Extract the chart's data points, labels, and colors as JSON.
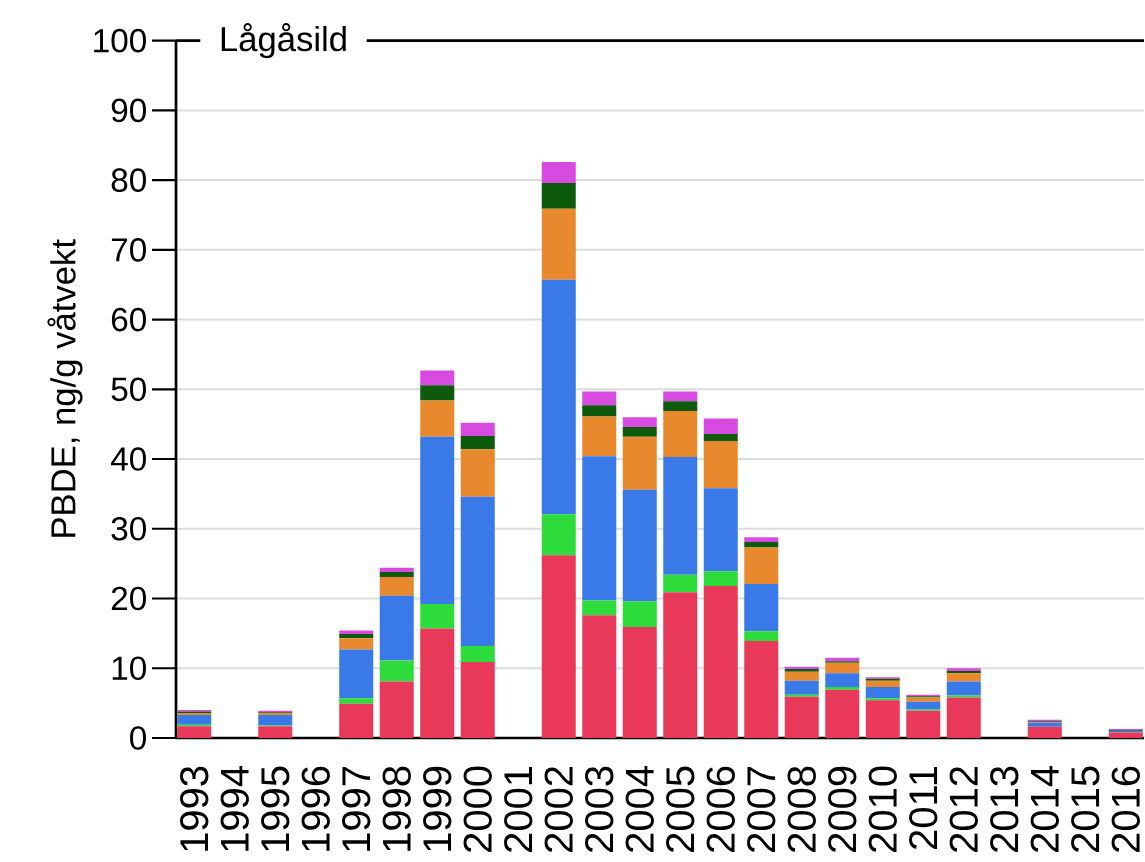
{
  "chart_data": {
    "type": "bar",
    "title": "Lågåsild",
    "ylabel": "PBDE, ng/g våtvekt",
    "stacked": true,
    "grid": "y",
    "categories": [
      "1993",
      "1994",
      "1995",
      "1996",
      "1997",
      "1998",
      "1999",
      "2000",
      "2001",
      "2002",
      "2003",
      "2004",
      "2005",
      "2006",
      "2007",
      "2008",
      "2009",
      "2010",
      "2011",
      "2012",
      "2013",
      "2014",
      "2015",
      "2016"
    ],
    "ylim": [
      0,
      100
    ],
    "yticks": [
      0,
      10,
      20,
      30,
      40,
      50,
      60,
      70,
      80,
      90,
      100
    ],
    "series": [
      {
        "color": "#e8395a",
        "values": [
          1.7,
          null,
          1.7,
          null,
          4.9,
          8.1,
          15.7,
          10.9,
          null,
          26.2,
          17.6,
          15.9,
          20.9,
          21.8,
          13.9,
          5.9,
          6.9,
          5.4,
          3.9,
          5.8,
          null,
          1.6,
          null,
          0.8
        ]
      },
      {
        "color": "#2ddc3a",
        "values": [
          0.2,
          null,
          0.1,
          null,
          0.8,
          3.0,
          3.5,
          2.3,
          null,
          5.9,
          2.1,
          3.7,
          2.5,
          2.1,
          1.4,
          0.3,
          0.4,
          0.3,
          0.2,
          0.3,
          null,
          null,
          null,
          null
        ]
      },
      {
        "color": "#3a7ae8",
        "values": [
          1.4,
          null,
          1.5,
          null,
          7.0,
          9.3,
          24.0,
          21.4,
          null,
          33.6,
          20.7,
          16.0,
          16.9,
          11.9,
          6.8,
          2.0,
          2.0,
          1.6,
          1.1,
          2.0,
          null,
          0.6,
          null,
          0.2
        ]
      },
      {
        "color": "#e8892e",
        "values": [
          0.3,
          null,
          0.3,
          null,
          1.6,
          2.7,
          5.2,
          6.8,
          null,
          10.2,
          5.7,
          7.6,
          6.6,
          6.8,
          5.2,
          1.3,
          1.5,
          0.9,
          0.6,
          1.2,
          null,
          0.1,
          null,
          null
        ]
      },
      {
        "color": "#0d5a0d",
        "values": [
          0.2,
          null,
          0.1,
          null,
          0.6,
          0.7,
          2.2,
          1.9,
          null,
          3.7,
          1.6,
          1.4,
          1.4,
          1.0,
          0.8,
          0.4,
          0.2,
          0.3,
          0.2,
          0.3,
          null,
          0.1,
          null,
          0.1
        ]
      },
      {
        "color": "#d84be0",
        "values": [
          0.2,
          null,
          0.2,
          null,
          0.5,
          0.6,
          2.1,
          1.9,
          null,
          3.0,
          2.0,
          1.4,
          1.4,
          2.2,
          0.7,
          0.3,
          0.5,
          0.2,
          0.2,
          0.4,
          null,
          0.2,
          null,
          0.2
        ]
      }
    ]
  }
}
